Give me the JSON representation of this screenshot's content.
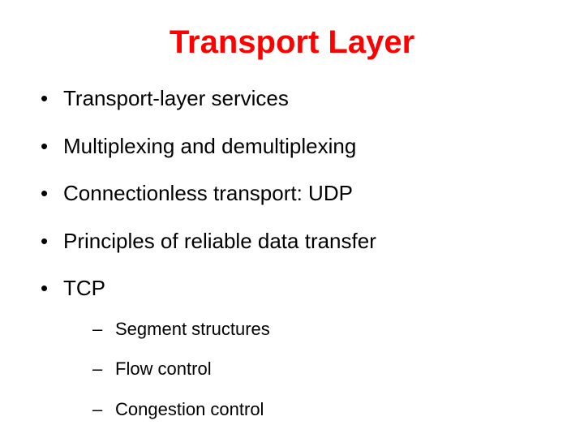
{
  "slide": {
    "title": "Transport Layer",
    "title_color": "#ff0000",
    "title_fontsize": 40,
    "body_color": "#000000",
    "bullet_fontsize": 26,
    "subbullet_fontsize": 22,
    "background_color": "#ffffff",
    "bullets": {
      "b0": "Transport-layer services",
      "b1": "Multiplexing and demultiplexing",
      "b2": "Connectionless transport: UDP",
      "b3": "Principles of reliable data transfer",
      "b4": "TCP"
    },
    "subbullets": {
      "s0": "Segment structures",
      "s1": "Flow control",
      "s2": "Congestion control"
    }
  }
}
